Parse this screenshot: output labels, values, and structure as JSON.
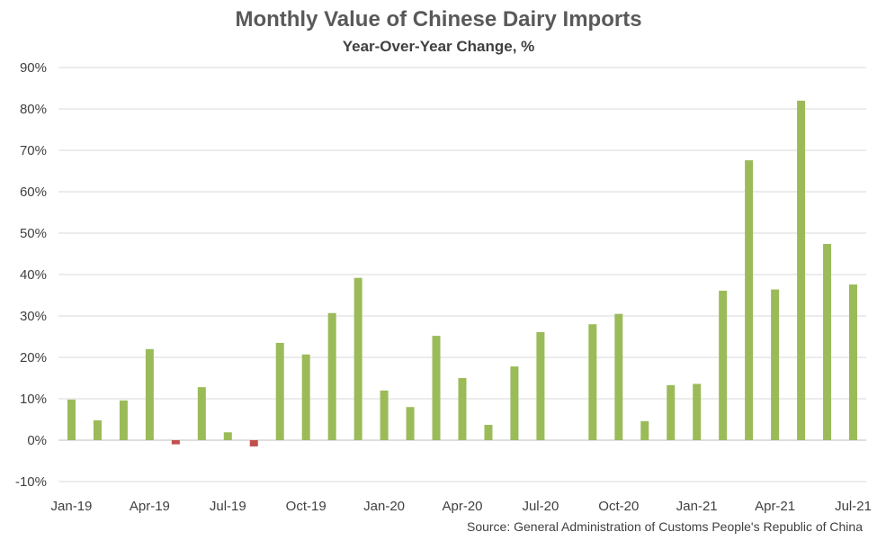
{
  "title": "Monthly Value of Chinese Dairy Imports",
  "subtitle": "Year-Over-Year Change, %",
  "source": "Source: General Administration of Customs People's Republic of China",
  "colors": {
    "positive": "#9BBB59",
    "negative": "#C0504D",
    "grid": "#D9D9D9",
    "text": "#404040"
  },
  "chart_data": {
    "type": "bar",
    "title": "Monthly Value of Chinese Dairy Imports",
    "subtitle": "Year-Over-Year Change, %",
    "xlabel": "",
    "ylabel": "",
    "ylim": [
      -10,
      90
    ],
    "yticks": [
      -10,
      0,
      10,
      20,
      30,
      40,
      50,
      60,
      70,
      80,
      90
    ],
    "ytick_labels": [
      "-10%",
      "0%",
      "10%",
      "20%",
      "30%",
      "40%",
      "50%",
      "60%",
      "70%",
      "80%",
      "90%"
    ],
    "grid": true,
    "legend": "none",
    "categories": [
      "Jan-19",
      "Feb-19",
      "Mar-19",
      "Apr-19",
      "May-19",
      "Jun-19",
      "Jul-19",
      "Aug-19",
      "Sep-19",
      "Oct-19",
      "Nov-19",
      "Dec-19",
      "Jan-20",
      "Feb-20",
      "Mar-20",
      "Apr-20",
      "May-20",
      "Jun-20",
      "Jul-20",
      "Aug-20",
      "Sep-20",
      "Oct-20",
      "Nov-20",
      "Dec-20",
      "Jan-21",
      "Feb-21",
      "Mar-21",
      "Apr-21",
      "May-21",
      "Jun-21",
      "Jul-21"
    ],
    "xtick_labels": [
      "Jan-19",
      "Apr-19",
      "Jul-19",
      "Oct-19",
      "Jan-20",
      "Apr-20",
      "Jul-20",
      "Oct-20",
      "Jan-21",
      "Apr-21",
      "Jul-21"
    ],
    "values": [
      9.8,
      4.8,
      9.6,
      22.0,
      -1.0,
      12.8,
      1.9,
      -1.5,
      23.5,
      20.7,
      30.7,
      39.2,
      12.0,
      8.0,
      25.2,
      15.0,
      3.7,
      17.8,
      26.1,
      null,
      28.0,
      30.5,
      4.6,
      13.3,
      13.6,
      36.1,
      67.6,
      36.4,
      82.0,
      47.4,
      37.6
    ]
  }
}
